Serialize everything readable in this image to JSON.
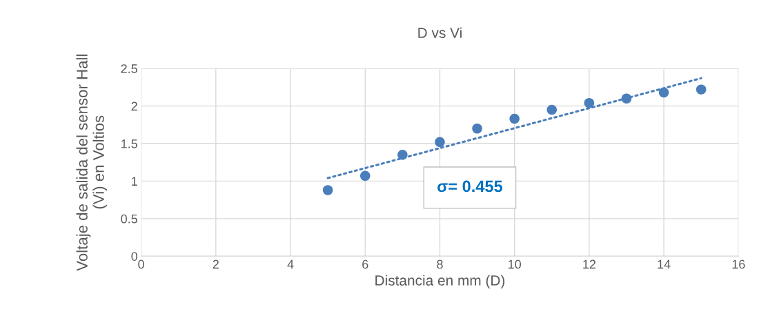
{
  "chart_data": {
    "type": "scatter",
    "title": "D vs Vi",
    "xlabel": "Distancia en mm (D)",
    "ylabel": "Voltaje de salida del sensor Hall\n(Vi) en Voltios",
    "x": [
      5,
      6,
      7,
      8,
      9,
      10,
      11,
      12,
      13,
      14,
      15
    ],
    "series": [
      {
        "color": "#4a7ebb",
        "values": [
          0.88,
          1.07,
          1.35,
          1.52,
          1.7,
          1.83,
          1.95,
          2.04,
          2.1,
          2.18,
          2.22
        ],
        "marker": "circle"
      },
      {
        "type": "line",
        "color": "#4a7ebb",
        "x": [
          5,
          15
        ],
        "values": [
          1.04,
          2.37
        ],
        "line_style": "dotted"
      }
    ],
    "annotations": [
      "σ= 0.455"
    ],
    "xlim": [
      0,
      16
    ],
    "xticks": [
      0,
      2,
      4,
      6,
      8,
      10,
      12,
      14,
      16
    ],
    "ylim": [
      0,
      2.5
    ],
    "yticks": [
      0,
      {
        "value": 0.5,
        "label": "0.5"
      },
      1,
      {
        "value": 1.5,
        "label": "1.5"
      },
      2,
      {
        "value": 2.5,
        "label": "2.5"
      }
    ],
    "grid": true,
    "legend": false
  }
}
